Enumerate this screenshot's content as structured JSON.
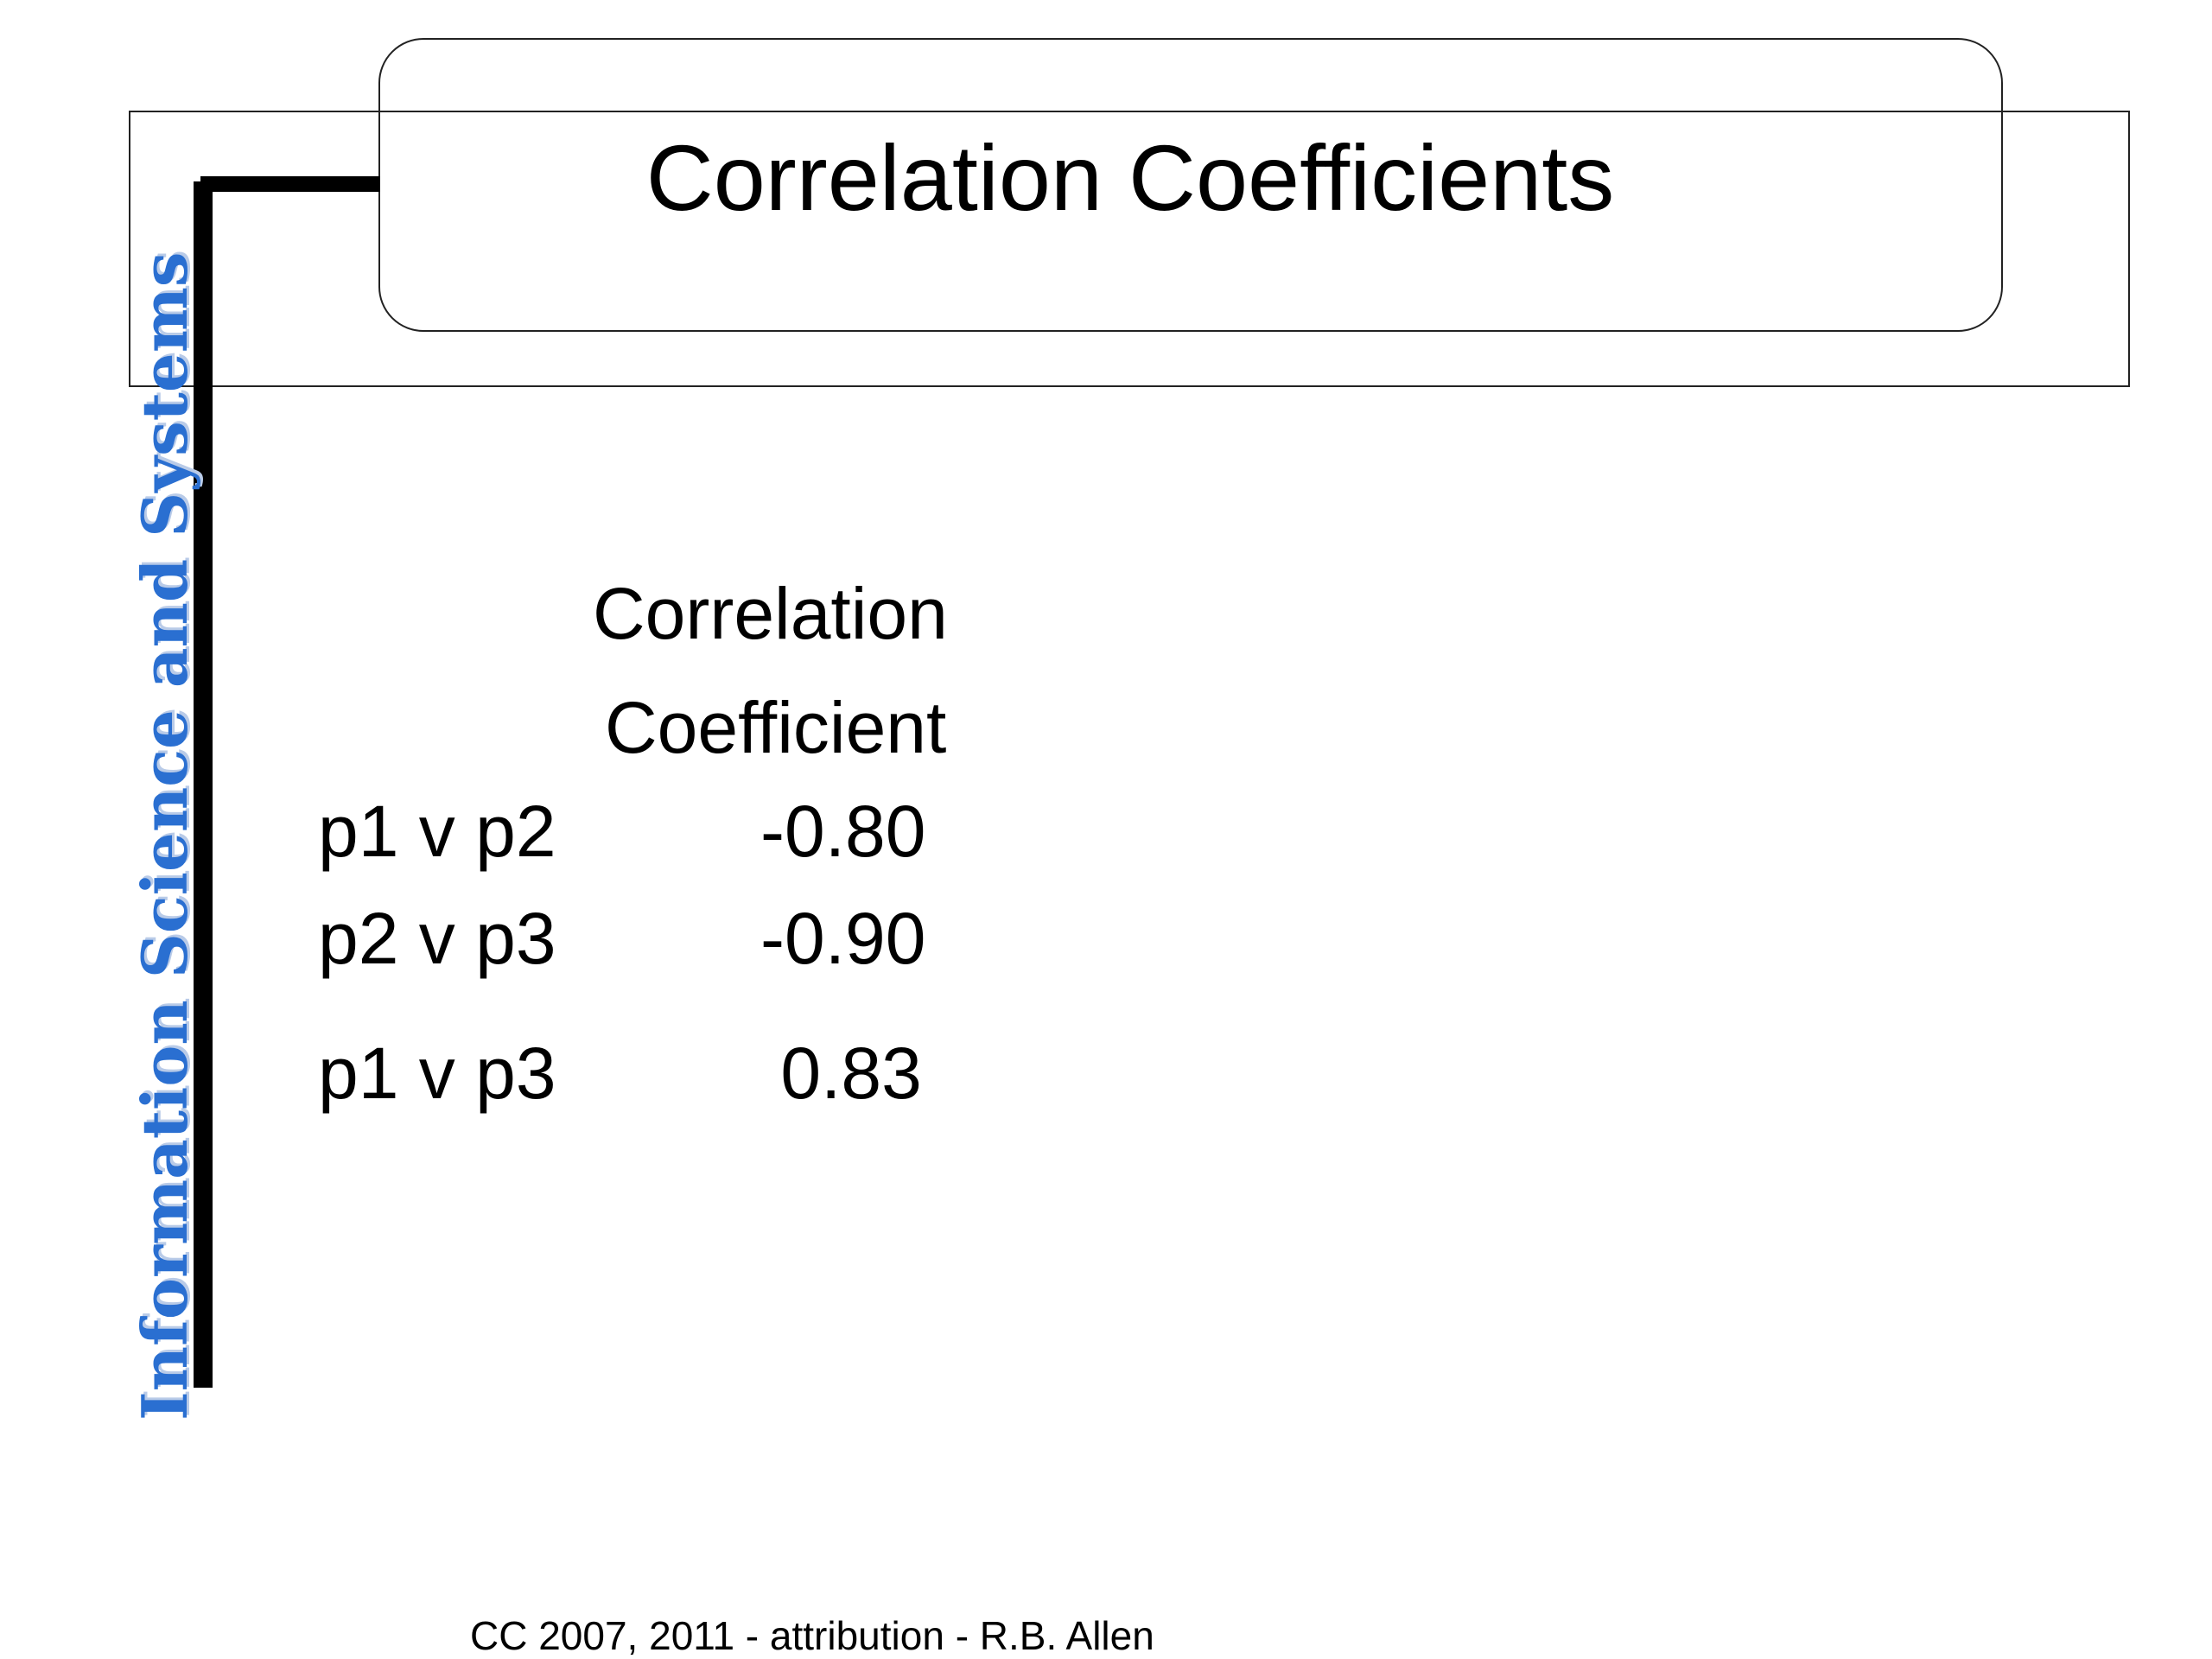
{
  "slide": {
    "title": "Correlation Coefficients",
    "side_label": "Information Science and Systems",
    "table": {
      "header_line1": "Correlation",
      "header_line2": "Coefficient",
      "rows": [
        {
          "pair": "p1 v p2",
          "value": "-0.80"
        },
        {
          "pair": "p2 v p3",
          "value": "-0.90"
        },
        {
          "pair": "p1 v p3",
          "value": " 0.83"
        }
      ]
    },
    "footer": "CC 2007, 2011 - attribution - R.B. Allen"
  },
  "colors": {
    "side_label": "#2a6fd1",
    "side_label_shadow": "#b9cbe8",
    "text": "#000000"
  }
}
